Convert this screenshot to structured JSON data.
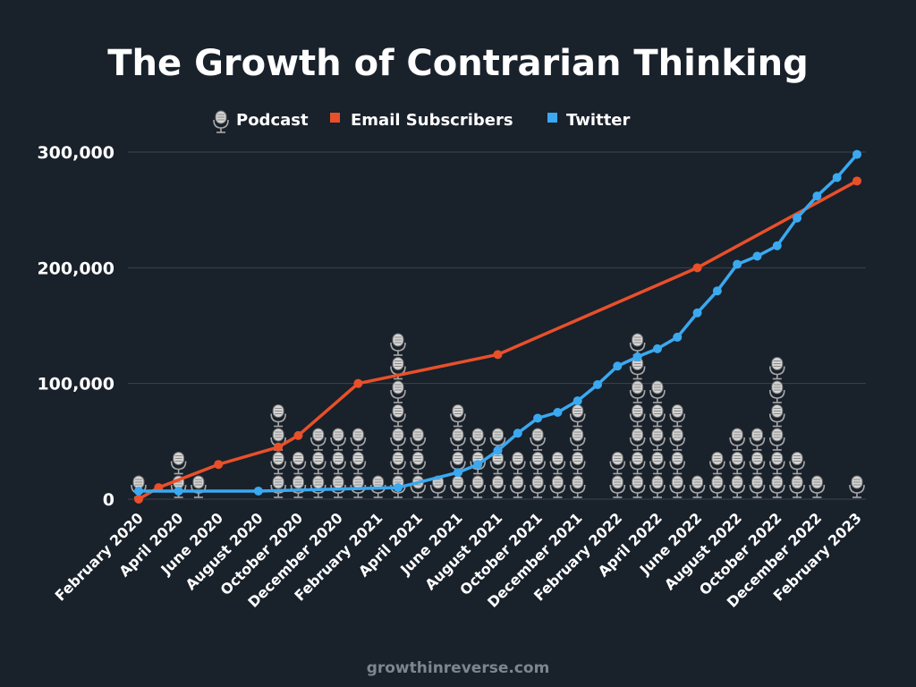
{
  "chart_data": {
    "type": "line",
    "title": "The Growth of Contrarian Thinking",
    "legend": {
      "placement": "top-center",
      "entries": [
        {
          "label": "Podcast",
          "marker": "microphone-icon"
        },
        {
          "label": "Email Subscribers",
          "marker": "square",
          "color": "#e8502a"
        },
        {
          "label": "Twitter",
          "marker": "square",
          "color": "#3aa9f0"
        }
      ]
    },
    "xlabel": "",
    "ylabel": "",
    "ylim": [
      0,
      300000
    ],
    "grid": true,
    "y_ticks": [
      {
        "value": 0,
        "label": "0"
      },
      {
        "value": 100000,
        "label": "100,000"
      },
      {
        "value": 200000,
        "label": "200,000"
      },
      {
        "value": 300000,
        "label": "300,000"
      }
    ],
    "x_tick_labels": [
      "February 2020",
      "April 2020",
      "June 2020",
      "August 2020",
      "October 2020",
      "December 2020",
      "February 2021",
      "April 2021",
      "June 2021",
      "August 2021",
      "October 2021",
      "December 2021",
      "February 2022",
      "April 2022",
      "June 2022",
      "August 2022",
      "October 2022",
      "December 2022",
      "February 2023"
    ],
    "months": [
      "Feb 2020",
      "Mar 2020",
      "Apr 2020",
      "May 2020",
      "Jun 2020",
      "Jul 2020",
      "Aug 2020",
      "Sep 2020",
      "Oct 2020",
      "Nov 2020",
      "Dec 2020",
      "Jan 2021",
      "Feb 2021",
      "Mar 2021",
      "Apr 2021",
      "May 2021",
      "Jun 2021",
      "Jul 2021",
      "Aug 2021",
      "Sep 2021",
      "Oct 2021",
      "Nov 2021",
      "Dec 2021",
      "Jan 2022",
      "Feb 2022",
      "Mar 2022",
      "Apr 2022",
      "May 2022",
      "Jun 2022",
      "Jul 2022",
      "Aug 2022",
      "Sep 2022",
      "Oct 2022",
      "Nov 2022",
      "Dec 2022",
      "Jan 2023",
      "Feb 2023"
    ],
    "series": [
      {
        "name": "Email Subscribers",
        "color": "#e8502a",
        "points": [
          {
            "month": "Feb 2020",
            "value": 0
          },
          {
            "month": "Mar 2020",
            "value": 10000
          },
          {
            "month": "Jun 2020",
            "value": 30000
          },
          {
            "month": "Sep 2020",
            "value": 45000
          },
          {
            "month": "Oct 2020",
            "value": 55000
          },
          {
            "month": "Jan 2021",
            "value": 100000
          },
          {
            "month": "Aug 2021",
            "value": 125000
          },
          {
            "month": "Jun 2022",
            "value": 200000
          },
          {
            "month": "Feb 2023",
            "value": 275000
          }
        ]
      },
      {
        "name": "Twitter",
        "color": "#3aa9f0",
        "points": [
          {
            "month": "Feb 2020",
            "value": 7000
          },
          {
            "month": "Apr 2020",
            "value": 7000
          },
          {
            "month": "Aug 2020",
            "value": 7000
          },
          {
            "month": "Mar 2021",
            "value": 10000
          },
          {
            "month": "Jun 2021",
            "value": 23000
          },
          {
            "month": "Jul 2021",
            "value": 30000
          },
          {
            "month": "Aug 2021",
            "value": 42000
          },
          {
            "month": "Sep 2021",
            "value": 57000
          },
          {
            "month": "Oct 2021",
            "value": 70000
          },
          {
            "month": "Nov 2021",
            "value": 75000
          },
          {
            "month": "Dec 2021",
            "value": 85000
          },
          {
            "month": "Jan 2022",
            "value": 99000
          },
          {
            "month": "Feb 2022",
            "value": 115000
          },
          {
            "month": "Mar 2022",
            "value": 123000
          },
          {
            "month": "Apr 2022",
            "value": 130000
          },
          {
            "month": "May 2022",
            "value": 140000
          },
          {
            "month": "Jun 2022",
            "value": 161000
          },
          {
            "month": "Jul 2022",
            "value": 180000
          },
          {
            "month": "Aug 2022",
            "value": 203000
          },
          {
            "month": "Sep 2022",
            "value": 210000
          },
          {
            "month": "Oct 2022",
            "value": 219000
          },
          {
            "month": "Nov 2022",
            "value": 243000
          },
          {
            "month": "Dec 2022",
            "value": 262000
          },
          {
            "month": "Jan 2023",
            "value": 278000
          },
          {
            "month": "Feb 2023",
            "value": 298000
          }
        ]
      },
      {
        "name": "Podcast",
        "marker": "microphone-icon",
        "unit": "episodes per month",
        "points": [
          {
            "month": "Feb 2020",
            "value": 1
          },
          {
            "month": "Apr 2020",
            "value": 2
          },
          {
            "month": "May 2020",
            "value": 1
          },
          {
            "month": "Sep 2020",
            "value": 4
          },
          {
            "month": "Oct 2020",
            "value": 2
          },
          {
            "month": "Nov 2020",
            "value": 3
          },
          {
            "month": "Dec 2020",
            "value": 3
          },
          {
            "month": "Jan 2021",
            "value": 3
          },
          {
            "month": "Feb 2021",
            "value": 1
          },
          {
            "month": "Mar 2021",
            "value": 7
          },
          {
            "month": "Apr 2021",
            "value": 3
          },
          {
            "month": "May 2021",
            "value": 1
          },
          {
            "month": "Jun 2021",
            "value": 4
          },
          {
            "month": "Jul 2021",
            "value": 3
          },
          {
            "month": "Aug 2021",
            "value": 3
          },
          {
            "month": "Sep 2021",
            "value": 2
          },
          {
            "month": "Oct 2021",
            "value": 3
          },
          {
            "month": "Nov 2021",
            "value": 2
          },
          {
            "month": "Dec 2021",
            "value": 4
          },
          {
            "month": "Feb 2022",
            "value": 2
          },
          {
            "month": "Mar 2022",
            "value": 7
          },
          {
            "month": "Apr 2022",
            "value": 5
          },
          {
            "month": "May 2022",
            "value": 4
          },
          {
            "month": "Jun 2022",
            "value": 1
          },
          {
            "month": "Jul 2022",
            "value": 2
          },
          {
            "month": "Aug 2022",
            "value": 3
          },
          {
            "month": "Sep 2022",
            "value": 3
          },
          {
            "month": "Oct 2022",
            "value": 6
          },
          {
            "month": "Nov 2022",
            "value": 2
          },
          {
            "month": "Dec 2022",
            "value": 1
          },
          {
            "month": "Feb 2023",
            "value": 1
          }
        ]
      }
    ],
    "source": "growthinreverse.com"
  },
  "colors": {
    "background": "#19212b",
    "grid": "#3a4350",
    "email": "#e8502a",
    "twitter": "#3aa9f0",
    "microphone": "#c9c9c9",
    "source_text": "#7d8590"
  }
}
